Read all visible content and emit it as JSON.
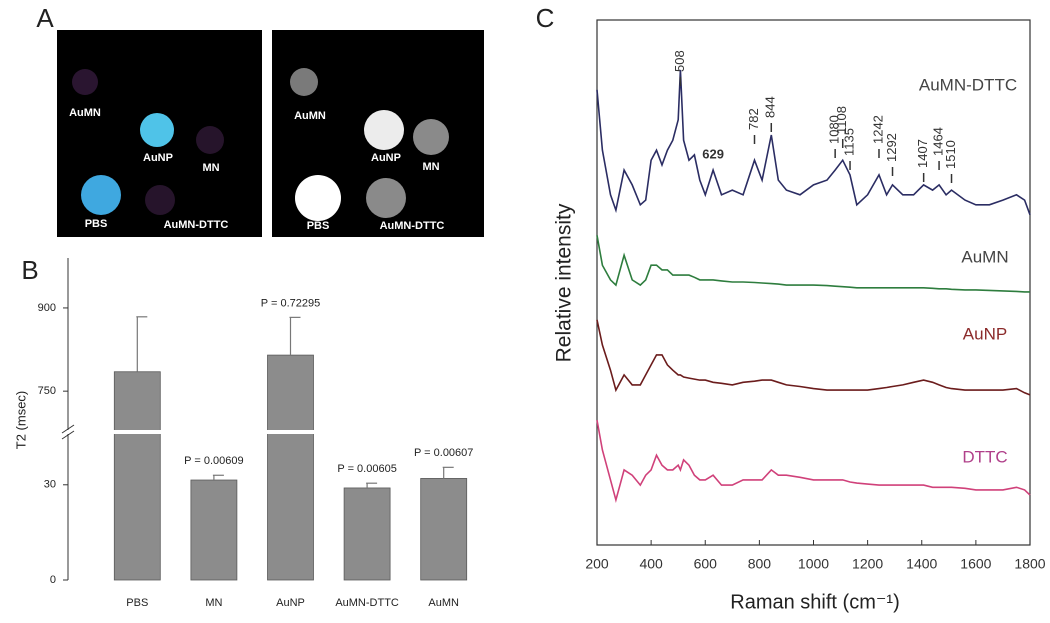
{
  "panel_labels": [
    "A",
    "B",
    "C"
  ],
  "image_panel": {
    "left_labels": [
      "AuMN",
      "AuNP",
      "MN",
      "PBS",
      "AuMN-DTTC"
    ],
    "right_labels": [
      "AuMN",
      "AuNP",
      "MN",
      "PBS",
      "AuMN-DTTC"
    ]
  },
  "chart_data": [
    {
      "type": "bar",
      "y_label": "T2 (msec)",
      "categories": [
        "PBS",
        "MN",
        "AuNP",
        "AuMN-DTTC",
        "AuMN"
      ],
      "values": [
        785,
        31.5,
        815,
        29,
        32
      ],
      "errors": [
        99,
        1.5,
        68,
        1.5,
        3.5
      ],
      "p_values": [
        null,
        "P = 0.00609",
        "P = 0.72295",
        "P = 0.00605",
        "P = 0.00607"
      ],
      "color": "#8c8c8c",
      "ylim": [
        0,
        990
      ],
      "axis_break": [
        46,
        680
      ],
      "yticks": [
        0,
        30,
        750,
        900
      ]
    },
    {
      "type": "line",
      "x_label": "Raman shift (cm⁻¹)",
      "y_label": "Relative intensity",
      "x": [
        200,
        220,
        250,
        270,
        300,
        330,
        360,
        380,
        400,
        420,
        440,
        460,
        480,
        500,
        508,
        520,
        540,
        560,
        580,
        600,
        629,
        660,
        700,
        740,
        782,
        810,
        844,
        870,
        900,
        950,
        1000,
        1050,
        1080,
        1108,
        1135,
        1160,
        1200,
        1242,
        1270,
        1292,
        1330,
        1370,
        1407,
        1440,
        1464,
        1490,
        1510,
        1560,
        1600,
        1650,
        1700,
        1750,
        1780,
        1800
      ],
      "series": [
        {
          "name": "AuMN-DTTC",
          "color": "#2b2d63",
          "label_color": "#444444",
          "values": [
            86.7,
            75.2,
            66.7,
            63.8,
            71.4,
            68.6,
            64.8,
            65.7,
            73.3,
            75.2,
            72.4,
            75.2,
            77.1,
            81.0,
            90.5,
            77.1,
            73.3,
            74.3,
            69.5,
            66.7,
            71.4,
            66.7,
            67.6,
            66.7,
            73.3,
            69.5,
            78.1,
            69.5,
            67.6,
            66.7,
            68.6,
            69.5,
            71.4,
            73.3,
            70.5,
            64.8,
            66.7,
            70.5,
            66.7,
            68.6,
            66.7,
            66.7,
            68.6,
            67.6,
            68.6,
            66.7,
            67.6,
            65.7,
            64.8,
            64.8,
            65.7,
            66.7,
            65.7,
            62.9
          ]
        },
        {
          "name": "AuMN",
          "color": "#2e7d3e",
          "label_color": "#444444",
          "values": [
            59.0,
            53.3,
            50.5,
            49.5,
            55.2,
            50.5,
            49.5,
            50.5,
            53.3,
            53.3,
            52.4,
            52.4,
            51.4,
            51.4,
            51.4,
            51.4,
            51.4,
            51.0,
            50.5,
            50.5,
            50.5,
            50.3,
            50.1,
            50.1,
            50.0,
            49.9,
            49.8,
            49.7,
            49.5,
            49.5,
            49.5,
            49.4,
            49.3,
            49.2,
            49.1,
            49.0,
            49.0,
            49.0,
            49.0,
            49.0,
            49.0,
            49.0,
            49.0,
            48.9,
            48.8,
            48.8,
            48.7,
            48.6,
            48.6,
            48.5,
            48.4,
            48.3,
            48.2,
            48.2
          ]
        },
        {
          "name": "AuNP",
          "color": "#6b1c1c",
          "label_color": "#8b2a2a",
          "values": [
            42.9,
            38.1,
            33.3,
            29.5,
            32.4,
            30.5,
            30.5,
            32.4,
            34.3,
            36.2,
            36.2,
            34.3,
            33.3,
            32.4,
            32.4,
            32.0,
            31.8,
            31.6,
            31.4,
            31.4,
            31.0,
            30.8,
            30.5,
            31.0,
            31.2,
            31.4,
            31.4,
            31.0,
            30.5,
            30.2,
            29.8,
            29.5,
            29.5,
            29.5,
            29.5,
            29.5,
            29.5,
            29.8,
            30.0,
            30.2,
            30.5,
            31.0,
            31.4,
            31.0,
            30.5,
            30.0,
            29.8,
            29.5,
            29.5,
            29.5,
            29.5,
            29.8,
            29.0,
            28.6
          ]
        },
        {
          "name": "DTTC",
          "color": "#d0417a",
          "label_color": "#b0408a",
          "values": [
            23.8,
            18.1,
            12.4,
            8.6,
            14.3,
            13.3,
            11.4,
            13.3,
            14.3,
            17.1,
            15.2,
            14.3,
            14.3,
            15.2,
            14.3,
            16.2,
            15.2,
            13.3,
            12.4,
            12.4,
            13.3,
            11.4,
            11.4,
            12.4,
            12.4,
            12.4,
            14.3,
            13.3,
            13.3,
            12.9,
            12.4,
            12.4,
            12.4,
            12.4,
            12.0,
            11.8,
            11.6,
            11.4,
            11.4,
            11.4,
            11.4,
            11.4,
            11.4,
            11.0,
            11.0,
            11.0,
            11.0,
            10.8,
            10.5,
            10.5,
            10.5,
            11.0,
            10.5,
            9.5
          ]
        }
      ],
      "peaks": [
        508,
        629,
        782,
        844,
        1080,
        1108,
        1135,
        1242,
        1292,
        1407,
        1464,
        1510
      ],
      "xlim": [
        200,
        1800
      ],
      "xticks": [
        200,
        400,
        600,
        800,
        1000,
        1200,
        1400,
        1600,
        1800
      ],
      "ylim": [
        0,
        100
      ]
    }
  ]
}
